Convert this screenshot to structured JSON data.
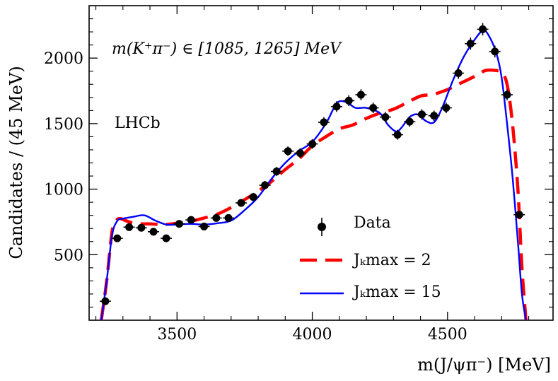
{
  "chart_data": {
    "type": "scatter",
    "xlabel": "m(J/ψπ⁻) [MeV]",
    "ylabel": "Candidates / (45 MeV)",
    "xlim": [
      3175,
      4890
    ],
    "ylim": [
      0,
      2400
    ],
    "xticks": [
      3500,
      4000,
      4500
    ],
    "yticks": [
      500,
      1000,
      1500,
      2000
    ],
    "annotations": {
      "mass_range": "m(K⁺π⁻) ∈ [1085, 1265] MeV",
      "experiment": "LHCb"
    },
    "legend": {
      "placement": "bottom-right",
      "entries": [
        "Data",
        "Jₖmax = 2",
        "Jₖmax = 15"
      ]
    },
    "data": {
      "name": "Data",
      "x": [
        3235,
        3279,
        3323,
        3368,
        3413,
        3460,
        3508,
        3552,
        3600,
        3645,
        3690,
        3737,
        3782,
        3825,
        3868,
        3910,
        3955,
        4000,
        4043,
        4090,
        4135,
        4180,
        4225,
        4270,
        4315,
        4360,
        4405,
        4450,
        4495,
        4540,
        4585,
        4630,
        4675,
        4720,
        4765
      ],
      "y": [
        145,
        625,
        710,
        705,
        675,
        625,
        735,
        765,
        715,
        780,
        780,
        895,
        940,
        1030,
        1135,
        1290,
        1275,
        1345,
        1510,
        1630,
        1675,
        1720,
        1620,
        1550,
        1415,
        1515,
        1570,
        1560,
        1620,
        1885,
        2110,
        2220,
        2050,
        1720,
        805
      ]
    },
    "series": [
      {
        "name": "Jₖmax = 2",
        "style": "dashed",
        "color": "#ff0000",
        "x": [
          3220,
          3240,
          3260,
          3275,
          3290,
          3310,
          3340,
          3370,
          3400,
          3450,
          3500,
          3550,
          3600,
          3650,
          3700,
          3750,
          3800,
          3850,
          3900,
          3950,
          4000,
          4050,
          4100,
          4150,
          4200,
          4250,
          4300,
          4350,
          4400,
          4450,
          4500,
          4550,
          4600,
          4640,
          4680,
          4700,
          4720,
          4740,
          4760,
          4775,
          4790
        ],
        "y": [
          0,
          300,
          680,
          760,
          775,
          760,
          740,
          735,
          735,
          730,
          740,
          755,
          780,
          810,
          860,
          920,
          985,
          1060,
          1150,
          1230,
          1330,
          1400,
          1460,
          1490,
          1540,
          1580,
          1610,
          1660,
          1710,
          1725,
          1760,
          1810,
          1860,
          1905,
          1905,
          1890,
          1800,
          1500,
          1000,
          400,
          0
        ]
      },
      {
        "name": "Jₖmax = 15",
        "style": "solid",
        "color": "#0000ff",
        "x": [
          3220,
          3240,
          3260,
          3280,
          3300,
          3340,
          3380,
          3420,
          3460,
          3500,
          3550,
          3600,
          3650,
          3700,
          3750,
          3800,
          3850,
          3900,
          3950,
          4000,
          4050,
          4080,
          4100,
          4130,
          4160,
          4200,
          4250,
          4280,
          4310,
          4330,
          4360,
          4390,
          4420,
          4450,
          4480,
          4520,
          4560,
          4600,
          4630,
          4650,
          4680,
          4700,
          4720,
          4740,
          4760,
          4775,
          4790
        ],
        "y": [
          0,
          300,
          650,
          760,
          775,
          790,
          800,
          760,
          730,
          730,
          735,
          730,
          740,
          760,
          840,
          940,
          1080,
          1200,
          1290,
          1360,
          1500,
          1620,
          1670,
          1660,
          1620,
          1620,
          1580,
          1490,
          1440,
          1470,
          1550,
          1570,
          1520,
          1510,
          1620,
          1830,
          2010,
          2140,
          2210,
          2180,
          2040,
          1850,
          1500,
          1100,
          600,
          200,
          0
        ]
      }
    ]
  }
}
